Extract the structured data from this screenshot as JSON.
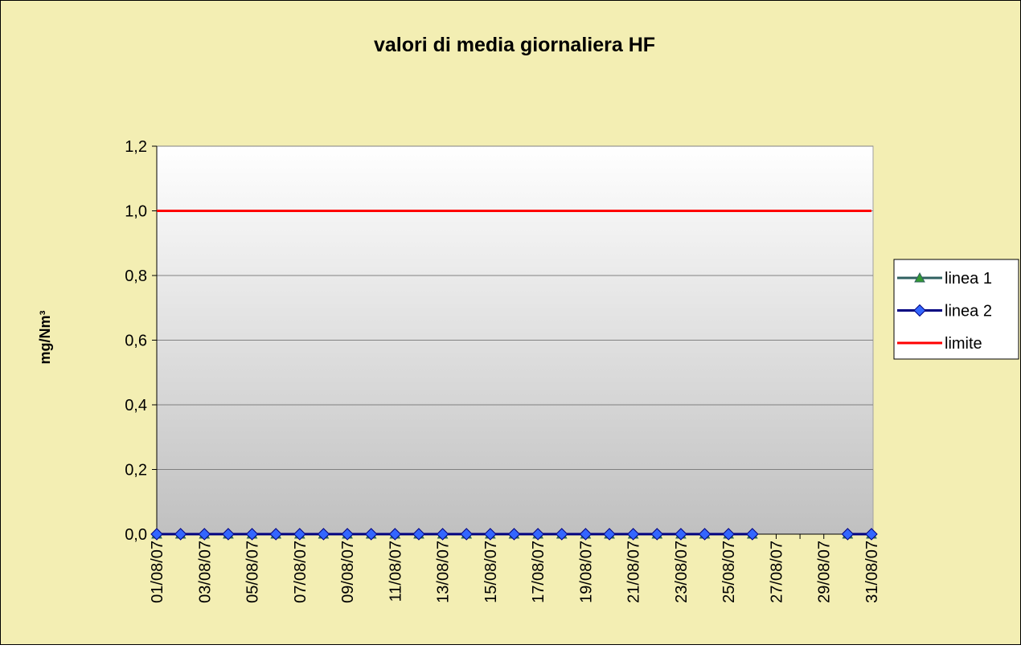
{
  "chart_data": {
    "type": "line",
    "title": "valori di media giornaliera  HF",
    "y_label": "mg/Nm³",
    "categories": [
      "01/08/07",
      null,
      "03/08/07",
      null,
      "05/08/07",
      null,
      "07/08/07",
      null,
      "09/08/07",
      null,
      "11/08/07",
      null,
      "13/08/07",
      null,
      "15/08/07",
      null,
      "17/08/07",
      null,
      "19/08/07",
      null,
      "21/08/07",
      null,
      "23/08/07",
      null,
      "25/08/07",
      null,
      "27/08/07",
      null,
      "29/08/07",
      null,
      "31/08/07"
    ],
    "series": [
      {
        "name": "linea 1",
        "color": "#2f6060",
        "marker": "triangle",
        "marker_color": "#339933",
        "values": [
          0,
          0,
          0,
          0,
          0,
          0,
          0,
          0,
          0,
          0,
          0,
          0,
          0,
          0,
          0,
          0,
          0,
          0,
          0,
          0,
          0,
          0,
          0,
          0,
          0,
          0,
          null,
          null,
          null,
          0,
          0
        ]
      },
      {
        "name": "linea 2",
        "color": "#000080",
        "marker": "diamond",
        "marker_color": "#3366ff",
        "values": [
          0,
          0,
          0,
          0,
          0,
          0,
          0,
          0,
          0,
          0,
          0,
          0,
          0,
          0,
          0,
          0,
          0,
          0,
          0,
          0,
          0,
          0,
          0,
          0,
          0,
          0,
          null,
          null,
          null,
          0,
          0
        ]
      },
      {
        "name": "limite",
        "color": "#ff0000",
        "marker": null,
        "marker_color": null,
        "values": [
          1,
          1,
          1,
          1,
          1,
          1,
          1,
          1,
          1,
          1,
          1,
          1,
          1,
          1,
          1,
          1,
          1,
          1,
          1,
          1,
          1,
          1,
          1,
          1,
          1,
          1,
          1,
          1,
          1,
          1,
          1
        ]
      }
    ],
    "ylim": [
      0,
      1.2
    ],
    "yticks": [
      {
        "value": 0,
        "label": "0,0"
      },
      {
        "value": 0.2,
        "label": "0,2"
      },
      {
        "value": 0.4,
        "label": "0,4"
      },
      {
        "value": 0.6,
        "label": "0,6"
      },
      {
        "value": 0.8,
        "label": "0,8"
      },
      {
        "value": 1,
        "label": "1,0"
      },
      {
        "value": 1.2,
        "label": "1,2"
      }
    ],
    "grid": true,
    "legend": "right"
  }
}
